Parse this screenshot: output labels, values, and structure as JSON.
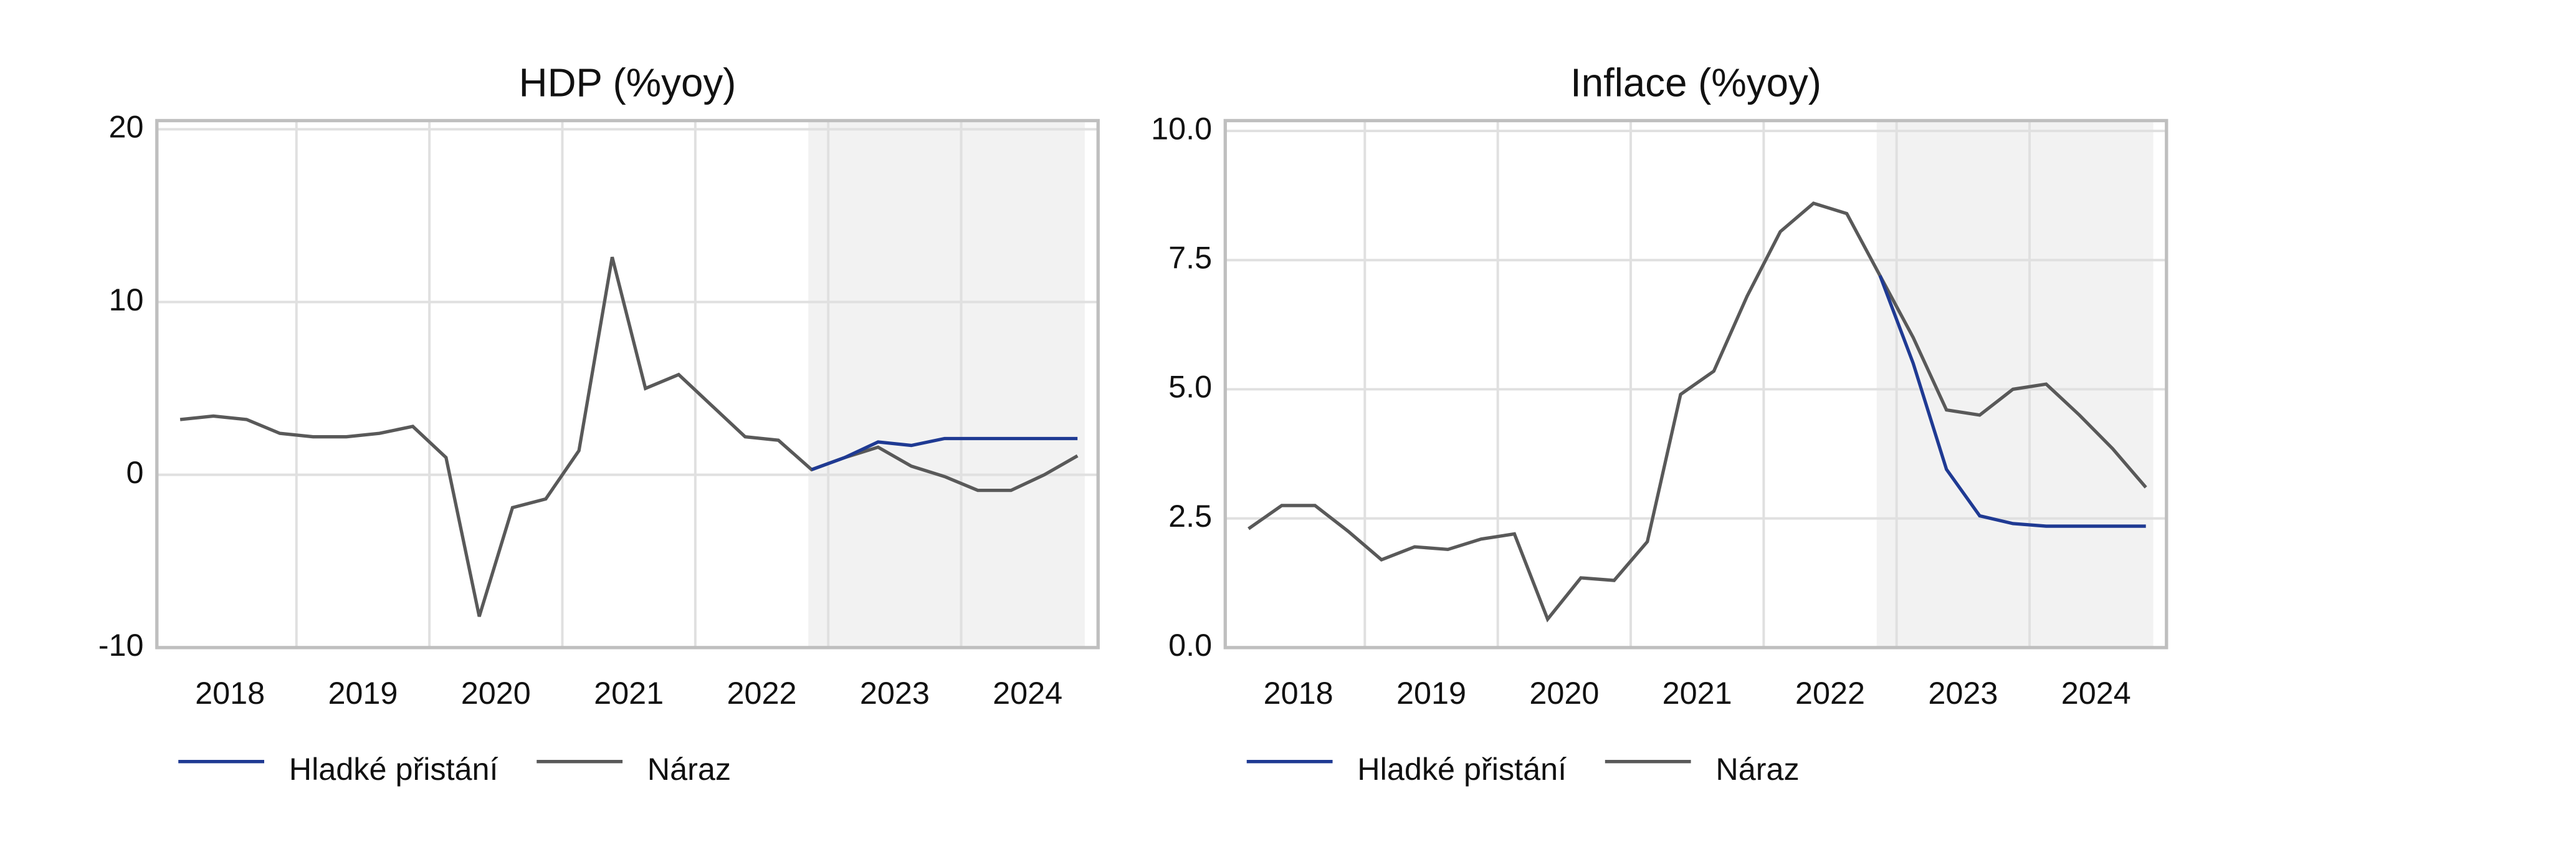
{
  "chart_data": [
    {
      "type": "line",
      "title": "HDP (%yoy)",
      "x": [
        2018.125,
        2018.375,
        2018.625,
        2018.875,
        2019.125,
        2019.375,
        2019.625,
        2019.875,
        2020.125,
        2020.375,
        2020.625,
        2020.875,
        2021.125,
        2021.375,
        2021.625,
        2021.875,
        2022.125,
        2022.375,
        2022.625,
        2022.875,
        2023.125,
        2023.375,
        2023.625,
        2023.875,
        2024.125,
        2024.375,
        2024.625,
        2024.875
      ],
      "series": [
        {
          "name": "Hladké přistání",
          "color": "#1f3a93",
          "values": [
            null,
            null,
            null,
            null,
            null,
            null,
            null,
            null,
            null,
            null,
            null,
            null,
            null,
            null,
            null,
            null,
            null,
            null,
            null,
            0.3,
            1.0,
            1.9,
            1.7,
            2.1,
            2.1,
            2.1,
            2.1,
            2.1
          ]
        },
        {
          "name": "Náraz",
          "color": "#595959",
          "values": [
            3.2,
            3.4,
            3.2,
            2.4,
            2.2,
            2.2,
            2.4,
            2.8,
            1.0,
            -8.2,
            -1.9,
            -1.4,
            1.4,
            12.6,
            5.0,
            5.8,
            4.0,
            2.2,
            2.0,
            0.3,
            1.0,
            1.6,
            0.5,
            -0.1,
            -0.9,
            -0.9,
            0.0,
            1.1
          ]
        }
      ],
      "xlim": [
        2017.95,
        2025.03
      ],
      "xticks": [
        {
          "value": 2018.5,
          "label": "2018"
        },
        {
          "value": 2019.5,
          "label": "2019"
        },
        {
          "value": 2020.5,
          "label": "2020"
        },
        {
          "value": 2021.5,
          "label": "2021"
        },
        {
          "value": 2022.5,
          "label": "2022"
        },
        {
          "value": 2023.5,
          "label": "2023"
        },
        {
          "value": 2024.5,
          "label": "2024"
        }
      ],
      "xgrid": [
        2019,
        2020,
        2021,
        2022,
        2023,
        2024
      ],
      "forecast_span": [
        2022.85,
        2024.93
      ],
      "ylim": [
        -10,
        20.5
      ],
      "yticks": [
        -10,
        0,
        10,
        20
      ],
      "grid": true
    },
    {
      "type": "line",
      "title": "Inflace (%yoy)",
      "x": [
        2018.125,
        2018.375,
        2018.625,
        2018.875,
        2019.125,
        2019.375,
        2019.625,
        2019.875,
        2020.125,
        2020.375,
        2020.625,
        2020.875,
        2021.125,
        2021.375,
        2021.625,
        2021.875,
        2022.125,
        2022.375,
        2022.625,
        2022.875,
        2023.125,
        2023.375,
        2023.625,
        2023.875,
        2024.125,
        2024.375,
        2024.625,
        2024.875
      ],
      "series": [
        {
          "name": "Hladké přistání",
          "color": "#1f3a93",
          "values": [
            null,
            null,
            null,
            null,
            null,
            null,
            null,
            null,
            null,
            null,
            null,
            null,
            null,
            null,
            null,
            null,
            null,
            null,
            null,
            7.2,
            5.5,
            3.45,
            2.55,
            2.4,
            2.35,
            2.35,
            2.35,
            2.35
          ]
        },
        {
          "name": "Náraz",
          "color": "#595959",
          "values": [
            2.3,
            2.75,
            2.75,
            2.25,
            1.7,
            1.95,
            1.9,
            2.1,
            2.2,
            0.55,
            1.35,
            1.3,
            2.05,
            4.9,
            5.35,
            6.8,
            8.05,
            8.6,
            8.4,
            7.2,
            6.0,
            4.6,
            4.5,
            5.0,
            5.1,
            4.5,
            3.85,
            3.1
          ]
        }
      ],
      "xlim": [
        2017.95,
        2025.03
      ],
      "xticks": [
        {
          "value": 2018.5,
          "label": "2018"
        },
        {
          "value": 2019.5,
          "label": "2019"
        },
        {
          "value": 2020.5,
          "label": "2020"
        },
        {
          "value": 2021.5,
          "label": "2021"
        },
        {
          "value": 2022.5,
          "label": "2022"
        },
        {
          "value": 2023.5,
          "label": "2023"
        },
        {
          "value": 2024.5,
          "label": "2024"
        }
      ],
      "xgrid": [
        2019,
        2020,
        2021,
        2022,
        2023,
        2024
      ],
      "forecast_span": [
        2022.85,
        2024.93
      ],
      "ylim": [
        0,
        10.2
      ],
      "yticks": [
        {
          "value": 0,
          "label": "0.0"
        },
        {
          "value": 2.5,
          "label": "2.5"
        },
        {
          "value": 5,
          "label": "5.0"
        },
        {
          "value": 7.5,
          "label": "7.5"
        },
        {
          "value": 10,
          "label": "10.0"
        }
      ],
      "grid": true
    }
  ]
}
